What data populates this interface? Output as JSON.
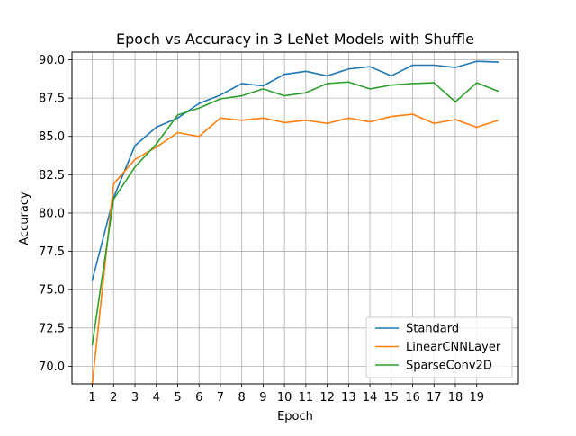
{
  "chart_data": {
    "type": "line",
    "title": "Epoch vs Accuracy in 3 LeNet Models with Shuffle",
    "xlabel": "Epoch",
    "ylabel": "Accuracy",
    "x": [
      1,
      2,
      3,
      4,
      5,
      6,
      7,
      8,
      9,
      10,
      11,
      12,
      13,
      14,
      15,
      16,
      17,
      18,
      19,
      20
    ],
    "xticks": [
      1,
      2,
      3,
      4,
      5,
      6,
      7,
      8,
      9,
      10,
      11,
      12,
      13,
      14,
      15,
      16,
      17,
      18,
      19
    ],
    "xlim": [
      0.05,
      20.95
    ],
    "yticks": [
      "70.0",
      "72.5",
      "75.0",
      "77.5",
      "80.0",
      "82.5",
      "85.0",
      "87.5",
      "90.0"
    ],
    "ylim": [
      68.85,
      90.5
    ],
    "grid": true,
    "legend_position": "lower-right",
    "series": [
      {
        "name": "Standard",
        "color": "#1f77b4",
        "values": [
          75.6,
          81.0,
          84.4,
          85.6,
          86.2,
          87.15,
          87.7,
          88.45,
          88.3,
          89.05,
          89.25,
          88.95,
          89.4,
          89.55,
          88.95,
          89.65,
          89.65,
          89.5,
          89.9,
          89.85
        ]
      },
      {
        "name": "LinearCNNLayer",
        "color": "#ff7f0e",
        "values": [
          68.85,
          81.9,
          83.5,
          84.3,
          85.25,
          85.0,
          86.2,
          86.05,
          86.2,
          85.9,
          86.05,
          85.85,
          86.2,
          85.95,
          86.3,
          86.45,
          85.85,
          86.1,
          85.6,
          86.05
        ]
      },
      {
        "name": "SparseConv2D",
        "color": "#2ca02c",
        "values": [
          71.4,
          80.9,
          83.0,
          84.5,
          86.4,
          86.85,
          87.45,
          87.65,
          88.1,
          87.65,
          87.85,
          88.45,
          88.55,
          88.1,
          88.35,
          88.45,
          88.5,
          87.25,
          88.5,
          87.95
        ]
      }
    ]
  }
}
